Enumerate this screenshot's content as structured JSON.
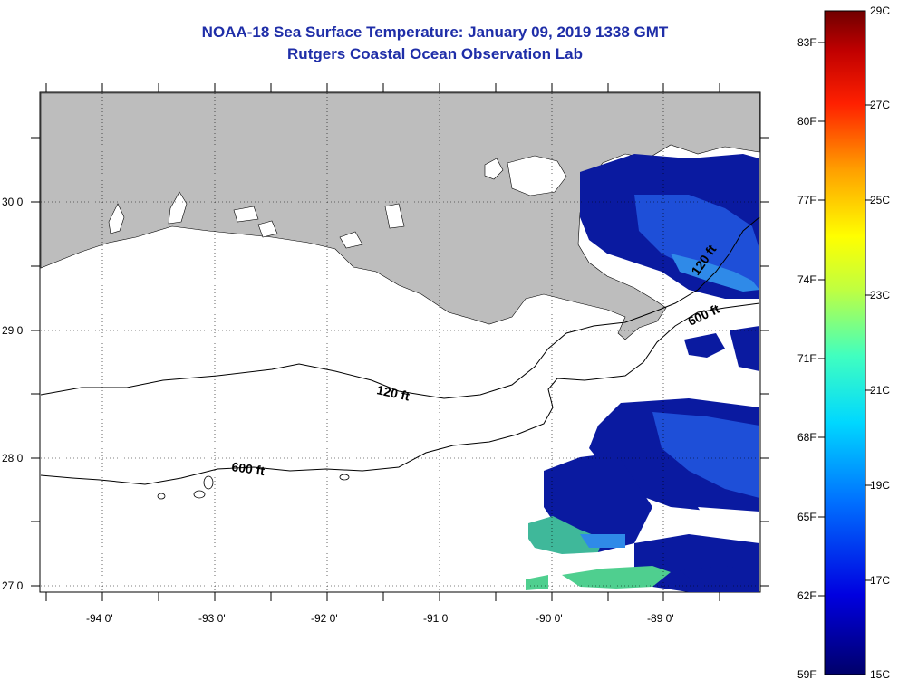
{
  "title": "NOAA-18 Sea Surface Temperature:  January 09, 2019 1338 GMT",
  "subtitle": "Rutgers Coastal Ocean Observation Lab",
  "lat_labels": [
    "30 0'",
    "29 0'",
    "28 0'",
    "27 0'"
  ],
  "lon_labels": [
    "-94 0'",
    "-93 0'",
    "-92 0'",
    "-91 0'",
    "-90 0'",
    "-89 0'"
  ],
  "contour_labels": [
    "120 ft",
    "120 ft",
    "600 ft",
    "600 ft"
  ],
  "colorbar": {
    "fahrenheit": [
      "83F",
      "80F",
      "77F",
      "74F",
      "71F",
      "68F",
      "65F",
      "62F",
      "59F"
    ],
    "celsius": [
      "29C",
      "27C",
      "25C",
      "23C",
      "21C",
      "19C",
      "17C",
      "15C"
    ]
  },
  "colors": {
    "title": "#1f2ea8",
    "land": "#bdbdbd",
    "cold": "#0a1aa0"
  }
}
